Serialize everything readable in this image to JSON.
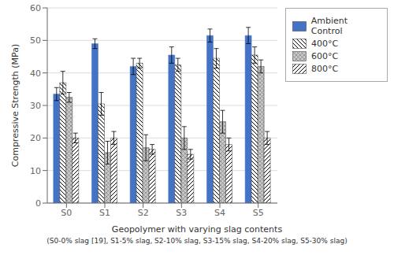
{
  "chart_data": {
    "type": "bar",
    "categories": [
      "S0",
      "S1",
      "S2",
      "S3",
      "S4",
      "S5"
    ],
    "series": [
      {
        "name": "Ambient Control",
        "color": "#4472C4",
        "values": [
          33.5,
          49.0,
          42.0,
          45.5,
          51.5,
          51.5
        ],
        "errors": [
          2.0,
          1.5,
          2.5,
          2.5,
          2.0,
          2.5
        ]
      },
      {
        "name": "400°C",
        "color": "#ffffff",
        "values": [
          37.0,
          30.5,
          43.0,
          42.5,
          44.5,
          45.5
        ],
        "errors": [
          3.5,
          3.5,
          1.5,
          2.0,
          3.0,
          2.5
        ]
      },
      {
        "name": "600°C",
        "color": "#c8c8c8",
        "values": [
          32.5,
          15.5,
          17.0,
          20.0,
          25.0,
          42.0
        ],
        "errors": [
          1.5,
          3.5,
          4.0,
          3.5,
          3.5,
          2.0
        ]
      },
      {
        "name": "800°C",
        "color": "#ffffff",
        "values": [
          20.0,
          20.0,
          16.5,
          15.0,
          18.0,
          20.0
        ],
        "errors": [
          1.5,
          2.0,
          1.5,
          1.5,
          2.0,
          2.0
        ]
      }
    ],
    "xlabel": [
      "Geopolymer with varying slag contents",
      "(S0-0% slag [19], S1-5% slag, S2-10% slag, S3-15% slag, S4-20% slag, S5-30% slag)"
    ],
    "ylabel": "Compressive Strength (MPa)",
    "ylim": [
      0,
      60
    ],
    "yticks": [
      0,
      10,
      20,
      30,
      40,
      50,
      60
    ],
    "grid": true,
    "legend": "upper right"
  }
}
